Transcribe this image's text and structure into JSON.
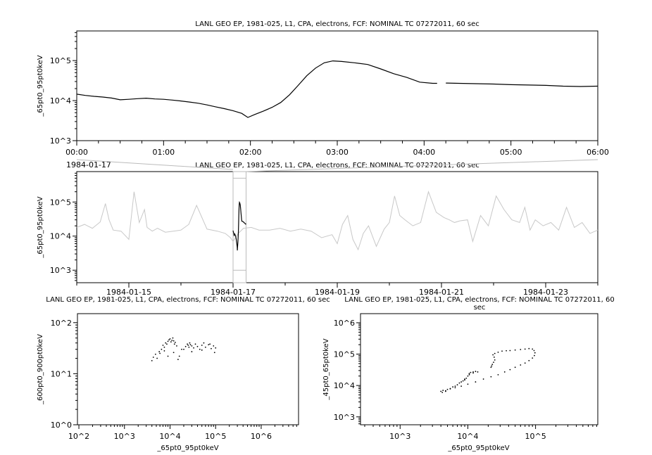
{
  "chart_data": [
    {
      "type": "line",
      "title": "LANL GEO EP, 1981-025, L1, CPA, electrons, FCF: NOMINAL TC 07272011, 60 sec",
      "ylabel": "_65pt0_95pt0keV",
      "xlabel": "",
      "date_label": "1984-01-17",
      "y_scale": "log",
      "ylim": [
        1000,
        550000
      ],
      "xlim_hours": [
        0,
        6
      ],
      "x_tick_labels": [
        "00:00",
        "01:00",
        "02:00",
        "03:00",
        "04:00",
        "05:00",
        "06:00"
      ],
      "y_tick_labels": [
        "10^3",
        "10^4",
        "10^5"
      ],
      "color": "#000000",
      "x_hours": [
        0,
        0.1,
        0.2,
        0.3,
        0.4,
        0.5,
        0.6,
        0.7,
        0.8,
        0.9,
        1.0,
        1.1,
        1.2,
        1.3,
        1.4,
        1.5,
        1.6,
        1.7,
        1.8,
        1.9,
        1.97,
        2.05,
        2.15,
        2.25,
        2.35,
        2.45,
        2.55,
        2.65,
        2.75,
        2.85,
        2.95,
        3.05,
        3.2,
        3.35,
        3.5,
        3.65,
        3.8,
        3.95,
        4.1,
        4.15,
        null,
        4.25,
        4.4,
        4.6,
        4.8,
        5.0,
        5.2,
        5.4,
        5.6,
        5.8,
        6.0
      ],
      "y": [
        14500,
        13500,
        12800,
        12300,
        11600,
        10500,
        10800,
        11200,
        11500,
        11000,
        10800,
        10300,
        9800,
        9200,
        8600,
        7800,
        7000,
        6300,
        5600,
        4800,
        3800,
        4500,
        5500,
        6800,
        9000,
        14000,
        24000,
        42000,
        65000,
        88000,
        98000,
        95000,
        88000,
        80000,
        62000,
        47000,
        38000,
        29000,
        27000,
        27000,
        null,
        27500,
        27000,
        26500,
        26000,
        25000,
        24500,
        24000,
        23000,
        22500,
        23000
      ]
    },
    {
      "type": "line",
      "title": "LANL GEO EP, 1981-025, L1, CPA, electrons, FCF: NOMINAL TC 07272011, 60 sec",
      "ylabel": "_65pt0_95pt0keV",
      "y_scale": "log",
      "ylim": [
        430,
        780000
      ],
      "xlim": [
        "1984-01-14",
        "1984-01-24"
      ],
      "x_tick_labels": [
        "1984-01-15",
        "1984-01-17",
        "1984-01-19",
        "1984-01-21",
        "1984-01-23"
      ],
      "y_tick_labels": [
        "10^3",
        "10^4",
        "10^5"
      ],
      "background_color": "#c8c8c8",
      "highlight_color": "#000000",
      "highlight_range": [
        "1984-01-17 00:00",
        "1984-01-17 06:00"
      ],
      "x_days": [
        0,
        0.15,
        0.3,
        0.45,
        0.55,
        0.62,
        0.7,
        0.85,
        1.0,
        1.1,
        1.2,
        1.3,
        1.35,
        1.45,
        1.55,
        1.7,
        1.85,
        2.0,
        2.15,
        2.3,
        2.5,
        2.7,
        2.85,
        2.95,
        3.0,
        3.1,
        3.2,
        3.35,
        3.5,
        3.7,
        3.9,
        4.1,
        4.3,
        4.5,
        4.7,
        4.9,
        5.0,
        5.1,
        5.2,
        5.3,
        5.4,
        5.5,
        5.6,
        5.75,
        5.9,
        6.0,
        6.1,
        6.2,
        6.3,
        6.45,
        6.6,
        6.75,
        6.9,
        7.05,
        7.15,
        7.25,
        7.35,
        7.5,
        7.6,
        7.75,
        7.9,
        8.05,
        8.2,
        8.35,
        8.5,
        8.6,
        8.7,
        8.8,
        8.95,
        9.1,
        9.25,
        9.4,
        9.55,
        9.7,
        9.85,
        10.0
      ],
      "y": [
        18000,
        22000,
        17000,
        26000,
        90000,
        30000,
        15000,
        14000,
        8000,
        200000,
        25000,
        60000,
        18000,
        14000,
        17000,
        13000,
        14000,
        15000,
        22000,
        80000,
        16000,
        14000,
        12000,
        9000,
        7000,
        12000,
        17000,
        18000,
        15000,
        15000,
        17000,
        14000,
        16000,
        14000,
        9000,
        11000,
        6000,
        22000,
        40000,
        8000,
        4000,
        12000,
        20000,
        5000,
        16000,
        25000,
        150000,
        40000,
        30000,
        20000,
        25000,
        200000,
        50000,
        35000,
        30000,
        25000,
        28000,
        30000,
        7000,
        40000,
        20000,
        150000,
        60000,
        30000,
        25000,
        70000,
        15000,
        30000,
        20000,
        25000,
        15000,
        70000,
        18000,
        25000,
        12000,
        15000
      ]
    },
    {
      "type": "scatter",
      "title": "LANL GEO EP, 1981-025, L1, CPA, electrons, FCF: NOMINAL TC 07272011, 60 sec",
      "xlabel": "_65pt0_95pt0keV",
      "ylabel": "_600pt0_900pt0keV",
      "x_scale": "log",
      "y_scale": "log",
      "xlim": [
        93,
        6600000
      ],
      "ylim": [
        1,
        150
      ],
      "x_tick_labels": [
        "10^2",
        "10^3",
        "10^4",
        "10^5",
        "10^6"
      ],
      "y_tick_labels": [
        "10^0",
        "10^1",
        "10^2"
      ],
      "x": [
        4000,
        4300,
        4800,
        5200,
        5800,
        6500,
        7000,
        7500,
        8000,
        8500,
        9000,
        9500,
        10000,
        10500,
        11000,
        11500,
        12000,
        12500,
        13000,
        14000,
        16000,
        18000,
        22000,
        24000,
        25000,
        26000,
        27000,
        28000,
        30000,
        33000,
        36000,
        40000,
        45000,
        50000,
        55000,
        60000,
        70000,
        80000,
        90000,
        100000,
        6000,
        7500,
        9000,
        12000,
        15000,
        20000,
        30000,
        50000,
        75000,
        95000
      ],
      "y": [
        18,
        21,
        24,
        20,
        27,
        30,
        36,
        33,
        40,
        38,
        43,
        46,
        48,
        42,
        45,
        50,
        44,
        38,
        41,
        35,
        22,
        30,
        34,
        38,
        36,
        33,
        40,
        37,
        35,
        32,
        38,
        34,
        30,
        36,
        40,
        33,
        37,
        31,
        35,
        32,
        25,
        28,
        22,
        26,
        19,
        30,
        27,
        29,
        38,
        26
      ]
    },
    {
      "type": "scatter",
      "title": "LANL GEO EP, 1981-025, L1, CPA, electrons, FCF: NOMINAL TC 07272011, 60 sec",
      "xlabel": "_65pt0_95pt0keV",
      "ylabel": "_45pt0_65pt0keV",
      "x_scale": "log",
      "y_scale": "log",
      "xlim": [
        260,
        830000
      ],
      "ylim": [
        560,
        1950000
      ],
      "x_tick_labels": [
        "10^3",
        "10^4",
        "10^5"
      ],
      "y_tick_labels": [
        "10^3",
        "10^4",
        "10^5",
        "10^6"
      ],
      "x": [
        4000,
        4300,
        4700,
        5000,
        5500,
        6000,
        6500,
        7000,
        7500,
        8000,
        8500,
        9000,
        9500,
        10000,
        10500,
        11000,
        12000,
        13000,
        14000,
        12000,
        10500,
        9000,
        22000,
        22500,
        23000,
        24000,
        25000,
        24500,
        23500,
        25000,
        28000,
        32000,
        37000,
        42000,
        50000,
        60000,
        70000,
        80000,
        90000,
        95000,
        98000,
        96000,
        90000,
        80000,
        70000,
        60000,
        50000,
        42000,
        35000,
        28000,
        22000,
        17000,
        13000,
        10000,
        8000,
        6500,
        5500,
        4700,
        4200
      ],
      "y": [
        6500,
        7000,
        6800,
        7500,
        8000,
        9000,
        9500,
        10500,
        12000,
        13000,
        14000,
        15000,
        17000,
        20000,
        24000,
        26000,
        27000,
        28000,
        27000,
        25000,
        22000,
        16000,
        38000,
        42000,
        47000,
        55000,
        65000,
        80000,
        95000,
        105000,
        115000,
        125000,
        128000,
        130000,
        135000,
        140000,
        145000,
        150000,
        145000,
        130000,
        110000,
        90000,
        75000,
        62000,
        52000,
        45000,
        38000,
        32000,
        27000,
        22000,
        19000,
        16000,
        13000,
        11000,
        9500,
        8500,
        7800,
        6500,
        6000
      ]
    }
  ]
}
